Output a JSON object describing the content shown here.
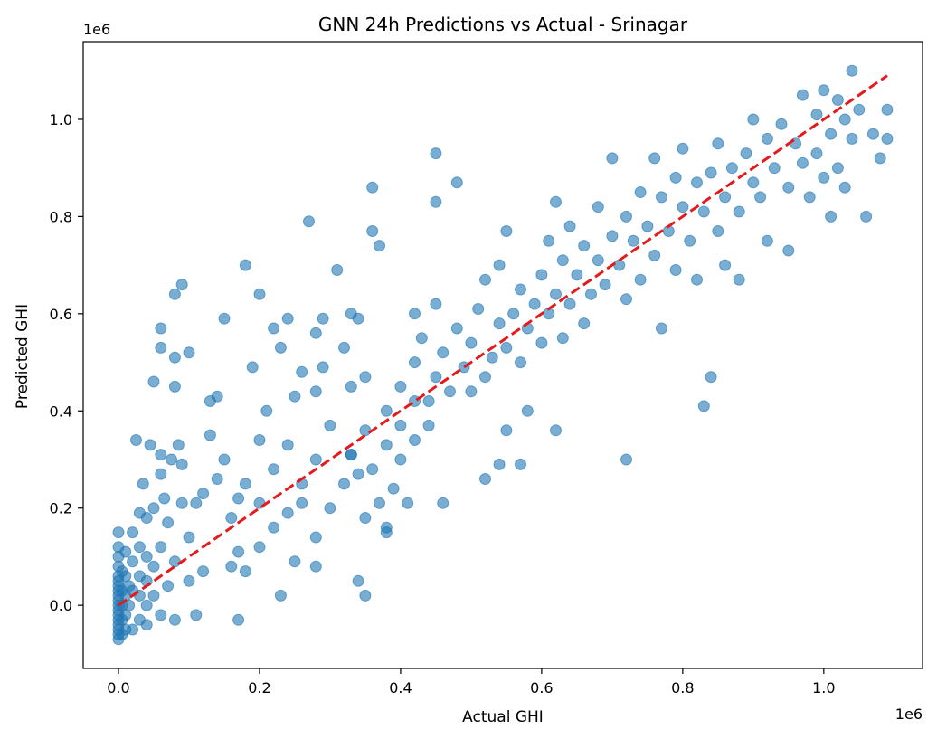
{
  "chart_data": {
    "type": "scatter",
    "title": "GNN 24h Predictions vs Actual - Srinagar",
    "xlabel": "Actual GHI",
    "ylabel": "Predicted GHI",
    "x_offset_label": "1e6",
    "y_offset_label": "1e6",
    "xlim": [
      -0.05,
      1.14
    ],
    "ylim": [
      -0.13,
      1.16
    ],
    "x_ticks": [
      0.0,
      0.2,
      0.4,
      0.6,
      0.8,
      1.0
    ],
    "y_ticks": [
      0.0,
      0.2,
      0.4,
      0.6,
      0.8,
      1.0
    ],
    "x_tick_labels": [
      "0.0",
      "0.2",
      "0.4",
      "0.6",
      "0.8",
      "1.0"
    ],
    "y_tick_labels": [
      "0.0",
      "0.2",
      "0.4",
      "0.6",
      "0.8",
      "1.0"
    ],
    "grid": false,
    "legend": "none",
    "point_color": "#1f77b4",
    "reference_line": {
      "style": "dashed",
      "color": "#e41a1c",
      "points": [
        [
          0.0,
          0.0
        ],
        [
          1.09,
          1.09
        ]
      ]
    },
    "series": [
      {
        "points": [
          [
            0.0,
            -0.07
          ],
          [
            0.0,
            -0.06
          ],
          [
            0.0,
            -0.05
          ],
          [
            0.0,
            -0.04
          ],
          [
            0.0,
            -0.03
          ],
          [
            0.0,
            -0.02
          ],
          [
            0.0,
            -0.01
          ],
          [
            0.0,
            0.0
          ],
          [
            0.0,
            0.01
          ],
          [
            0.0,
            0.02
          ],
          [
            0.0,
            0.03
          ],
          [
            0.0,
            0.04
          ],
          [
            0.0,
            0.05
          ],
          [
            0.0,
            0.06
          ],
          [
            0.0,
            0.08
          ],
          [
            0.0,
            0.1
          ],
          [
            0.0,
            0.12
          ],
          [
            0.0,
            0.15
          ],
          [
            0.005,
            -0.06
          ],
          [
            0.005,
            -0.03
          ],
          [
            0.005,
            0.0
          ],
          [
            0.005,
            0.03
          ],
          [
            0.005,
            0.07
          ],
          [
            0.01,
            -0.05
          ],
          [
            0.01,
            -0.02
          ],
          [
            0.01,
            0.02
          ],
          [
            0.01,
            0.06
          ],
          [
            0.01,
            0.11
          ],
          [
            0.015,
            0.0
          ],
          [
            0.015,
            0.04
          ],
          [
            0.02,
            -0.05
          ],
          [
            0.02,
            0.03
          ],
          [
            0.02,
            0.09
          ],
          [
            0.02,
            0.15
          ],
          [
            0.03,
            -0.03
          ],
          [
            0.03,
            0.02
          ],
          [
            0.03,
            0.06
          ],
          [
            0.03,
            0.12
          ],
          [
            0.03,
            0.19
          ],
          [
            0.04,
            -0.04
          ],
          [
            0.04,
            0.0
          ],
          [
            0.04,
            0.05
          ],
          [
            0.04,
            0.1
          ],
          [
            0.04,
            0.18
          ],
          [
            0.05,
            0.02
          ],
          [
            0.05,
            0.08
          ],
          [
            0.05,
            0.2
          ],
          [
            0.06,
            -0.02
          ],
          [
            0.06,
            0.12
          ],
          [
            0.06,
            0.27
          ],
          [
            0.07,
            0.04
          ],
          [
            0.07,
            0.17
          ],
          [
            0.08,
            -0.03
          ],
          [
            0.08,
            0.09
          ],
          [
            0.09,
            0.21
          ],
          [
            0.1,
            0.05
          ],
          [
            0.1,
            0.14
          ],
          [
            0.11,
            -0.02
          ],
          [
            0.12,
            0.07
          ],
          [
            0.12,
            0.23
          ],
          [
            0.025,
            0.34
          ],
          [
            0.035,
            0.25
          ],
          [
            0.045,
            0.33
          ],
          [
            0.06,
            0.31
          ],
          [
            0.065,
            0.22
          ],
          [
            0.075,
            0.3
          ],
          [
            0.085,
            0.33
          ],
          [
            0.09,
            0.29
          ],
          [
            0.11,
            0.21
          ],
          [
            0.13,
            0.35
          ],
          [
            0.14,
            0.26
          ],
          [
            0.15,
            0.3
          ],
          [
            0.05,
            0.46
          ],
          [
            0.06,
            0.53
          ],
          [
            0.06,
            0.57
          ],
          [
            0.08,
            0.45
          ],
          [
            0.08,
            0.51
          ],
          [
            0.08,
            0.64
          ],
          [
            0.09,
            0.66
          ],
          [
            0.1,
            0.52
          ],
          [
            0.13,
            0.42
          ],
          [
            0.14,
            0.43
          ],
          [
            0.15,
            0.59
          ],
          [
            0.16,
            0.08
          ],
          [
            0.16,
            0.18
          ],
          [
            0.17,
            -0.03
          ],
          [
            0.17,
            0.11
          ],
          [
            0.17,
            0.22
          ],
          [
            0.18,
            0.07
          ],
          [
            0.18,
            0.25
          ],
          [
            0.2,
            0.12
          ],
          [
            0.2,
            0.21
          ],
          [
            0.22,
            0.16
          ],
          [
            0.22,
            0.28
          ],
          [
            0.24,
            0.19
          ],
          [
            0.24,
            0.33
          ],
          [
            0.25,
            0.09
          ],
          [
            0.26,
            0.25
          ],
          [
            0.28,
            0.14
          ],
          [
            0.28,
            0.3
          ],
          [
            0.3,
            0.2
          ],
          [
            0.3,
            0.37
          ],
          [
            0.32,
            0.25
          ],
          [
            0.33,
            0.31
          ],
          [
            0.34,
            0.27
          ],
          [
            0.35,
            0.18
          ],
          [
            0.35,
            0.36
          ],
          [
            0.36,
            0.28
          ],
          [
            0.37,
            0.21
          ],
          [
            0.38,
            0.16
          ],
          [
            0.38,
            0.33
          ],
          [
            0.38,
            0.4
          ],
          [
            0.39,
            0.24
          ],
          [
            0.4,
            0.3
          ],
          [
            0.4,
            0.37
          ],
          [
            0.41,
            0.21
          ],
          [
            0.42,
            0.34
          ],
          [
            0.18,
            0.7
          ],
          [
            0.19,
            0.49
          ],
          [
            0.2,
            0.64
          ],
          [
            0.21,
            0.4
          ],
          [
            0.22,
            0.57
          ],
          [
            0.23,
            0.53
          ],
          [
            0.24,
            0.59
          ],
          [
            0.25,
            0.43
          ],
          [
            0.26,
            0.48
          ],
          [
            0.27,
            0.79
          ],
          [
            0.28,
            0.44
          ],
          [
            0.28,
            0.56
          ],
          [
            0.29,
            0.49
          ],
          [
            0.29,
            0.59
          ],
          [
            0.31,
            0.69
          ],
          [
            0.32,
            0.53
          ],
          [
            0.33,
            0.45
          ],
          [
            0.33,
            0.6
          ],
          [
            0.34,
            0.59
          ],
          [
            0.35,
            0.47
          ],
          [
            0.2,
            0.34
          ],
          [
            0.23,
            0.02
          ],
          [
            0.26,
            0.21
          ],
          [
            0.28,
            0.08
          ],
          [
            0.33,
            0.31
          ],
          [
            0.34,
            0.05
          ],
          [
            0.35,
            0.02
          ],
          [
            0.36,
            0.86
          ],
          [
            0.36,
            0.77
          ],
          [
            0.37,
            0.74
          ],
          [
            0.38,
            0.15
          ],
          [
            0.42,
            0.6
          ],
          [
            0.42,
            0.42
          ],
          [
            0.44,
            0.37
          ],
          [
            0.45,
            0.93
          ],
          [
            0.45,
            0.83
          ],
          [
            0.46,
            0.21
          ],
          [
            0.48,
            0.87
          ],
          [
            0.52,
            0.26
          ],
          [
            0.54,
            0.29
          ],
          [
            0.55,
            0.36
          ],
          [
            0.57,
            0.29
          ],
          [
            0.58,
            0.4
          ],
          [
            0.62,
            0.36
          ],
          [
            0.72,
            0.3
          ],
          [
            0.83,
            0.41
          ],
          [
            0.84,
            0.47
          ],
          [
            0.4,
            0.45
          ],
          [
            0.42,
            0.5
          ],
          [
            0.43,
            0.55
          ],
          [
            0.44,
            0.42
          ],
          [
            0.45,
            0.47
          ],
          [
            0.45,
            0.62
          ],
          [
            0.46,
            0.52
          ],
          [
            0.47,
            0.44
          ],
          [
            0.48,
            0.57
          ],
          [
            0.49,
            0.49
          ],
          [
            0.5,
            0.54
          ],
          [
            0.5,
            0.44
          ],
          [
            0.51,
            0.61
          ],
          [
            0.52,
            0.47
          ],
          [
            0.52,
            0.67
          ],
          [
            0.53,
            0.51
          ],
          [
            0.54,
            0.58
          ],
          [
            0.54,
            0.7
          ],
          [
            0.55,
            0.53
          ],
          [
            0.55,
            0.77
          ],
          [
            0.56,
            0.6
          ],
          [
            0.57,
            0.5
          ],
          [
            0.57,
            0.65
          ],
          [
            0.58,
            0.57
          ],
          [
            0.59,
            0.62
          ],
          [
            0.6,
            0.54
          ],
          [
            0.6,
            0.68
          ],
          [
            0.61,
            0.75
          ],
          [
            0.61,
            0.6
          ],
          [
            0.62,
            0.64
          ],
          [
            0.62,
            0.83
          ],
          [
            0.63,
            0.55
          ],
          [
            0.63,
            0.71
          ],
          [
            0.64,
            0.62
          ],
          [
            0.64,
            0.78
          ],
          [
            0.65,
            0.68
          ],
          [
            0.66,
            0.58
          ],
          [
            0.66,
            0.74
          ],
          [
            0.67,
            0.64
          ],
          [
            0.68,
            0.71
          ],
          [
            0.68,
            0.82
          ],
          [
            0.69,
            0.66
          ],
          [
            0.7,
            0.76
          ],
          [
            0.7,
            0.92
          ],
          [
            0.71,
            0.7
          ],
          [
            0.72,
            0.63
          ],
          [
            0.72,
            0.8
          ],
          [
            0.73,
            0.75
          ],
          [
            0.74,
            0.85
          ],
          [
            0.74,
            0.67
          ],
          [
            0.75,
            0.78
          ],
          [
            0.76,
            0.92
          ],
          [
            0.76,
            0.72
          ],
          [
            0.77,
            0.84
          ],
          [
            0.77,
            0.57
          ],
          [
            0.78,
            0.77
          ],
          [
            0.79,
            0.88
          ],
          [
            0.79,
            0.69
          ],
          [
            0.8,
            0.82
          ],
          [
            0.8,
            0.94
          ],
          [
            0.81,
            0.75
          ],
          [
            0.82,
            0.87
          ],
          [
            0.82,
            0.67
          ],
          [
            0.83,
            0.81
          ],
          [
            0.84,
            0.89
          ],
          [
            0.85,
            0.77
          ],
          [
            0.85,
            0.95
          ],
          [
            0.86,
            0.84
          ],
          [
            0.86,
            0.7
          ],
          [
            0.87,
            0.9
          ],
          [
            0.88,
            0.81
          ],
          [
            0.88,
            0.67
          ],
          [
            0.89,
            0.93
          ],
          [
            0.9,
            0.87
          ],
          [
            0.9,
            1.0
          ],
          [
            0.91,
            0.84
          ],
          [
            0.92,
            0.96
          ],
          [
            0.92,
            0.75
          ],
          [
            0.93,
            0.9
          ],
          [
            0.94,
            0.99
          ],
          [
            0.95,
            0.86
          ],
          [
            0.95,
            0.73
          ],
          [
            0.96,
            0.95
          ],
          [
            0.97,
            1.05
          ],
          [
            0.97,
            0.91
          ],
          [
            0.98,
            0.84
          ],
          [
            0.99,
            1.01
          ],
          [
            0.99,
            0.93
          ],
          [
            1.0,
            1.06
          ],
          [
            1.0,
            0.88
          ],
          [
            1.01,
            0.97
          ],
          [
            1.01,
            0.8
          ],
          [
            1.02,
            1.04
          ],
          [
            1.02,
            0.9
          ],
          [
            1.03,
            1.0
          ],
          [
            1.03,
            0.86
          ],
          [
            1.04,
            1.1
          ],
          [
            1.04,
            0.96
          ],
          [
            1.05,
            1.02
          ],
          [
            1.06,
            0.8
          ],
          [
            1.07,
            0.97
          ],
          [
            1.08,
            0.92
          ],
          [
            1.09,
            1.02
          ],
          [
            1.09,
            0.96
          ]
        ]
      }
    ]
  }
}
